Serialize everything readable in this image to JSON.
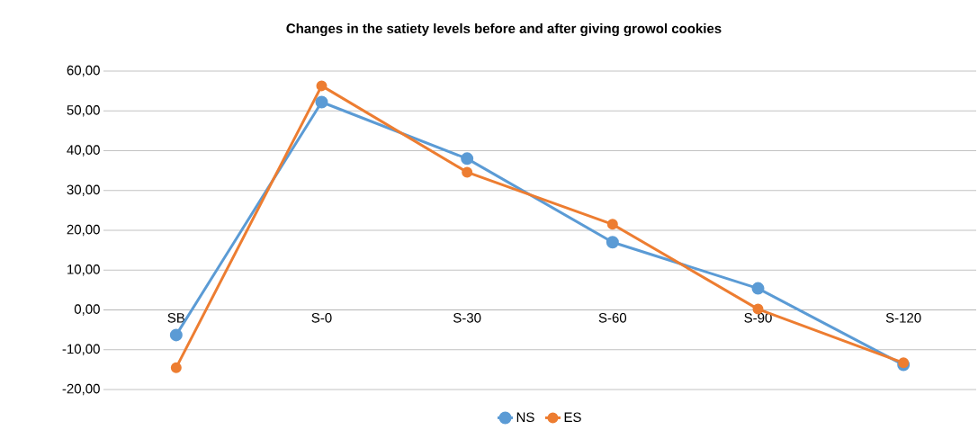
{
  "chart_data": {
    "type": "line",
    "title": "Changes in the satiety levels before and after giving growol cookies",
    "categories": [
      "SB",
      "S-0",
      "S-30",
      "S-60",
      "S-90",
      "S-120"
    ],
    "series": [
      {
        "name": "NS",
        "color": "#5b9bd5",
        "values": [
          -6.3,
          52.2,
          38.0,
          17.0,
          5.4,
          -13.8
        ]
      },
      {
        "name": "ES",
        "color": "#ed7d31",
        "values": [
          -14.5,
          56.3,
          34.6,
          21.5,
          0.2,
          -13.3
        ]
      }
    ],
    "ylim": [
      -20,
      60
    ],
    "yticks": [
      {
        "value": -20,
        "label": "-20,00"
      },
      {
        "value": -10,
        "label": "-10,00"
      },
      {
        "value": 0,
        "label": "0,00"
      },
      {
        "value": 10,
        "label": "10,00"
      },
      {
        "value": 20,
        "label": "20,00"
      },
      {
        "value": 30,
        "label": "30,00"
      },
      {
        "value": 40,
        "label": "40,00"
      },
      {
        "value": 50,
        "label": "50,00"
      },
      {
        "value": 60,
        "label": "60,00"
      }
    ],
    "grid": "y",
    "legend": "bottom",
    "marker": "circle",
    "line_style": "solid"
  }
}
